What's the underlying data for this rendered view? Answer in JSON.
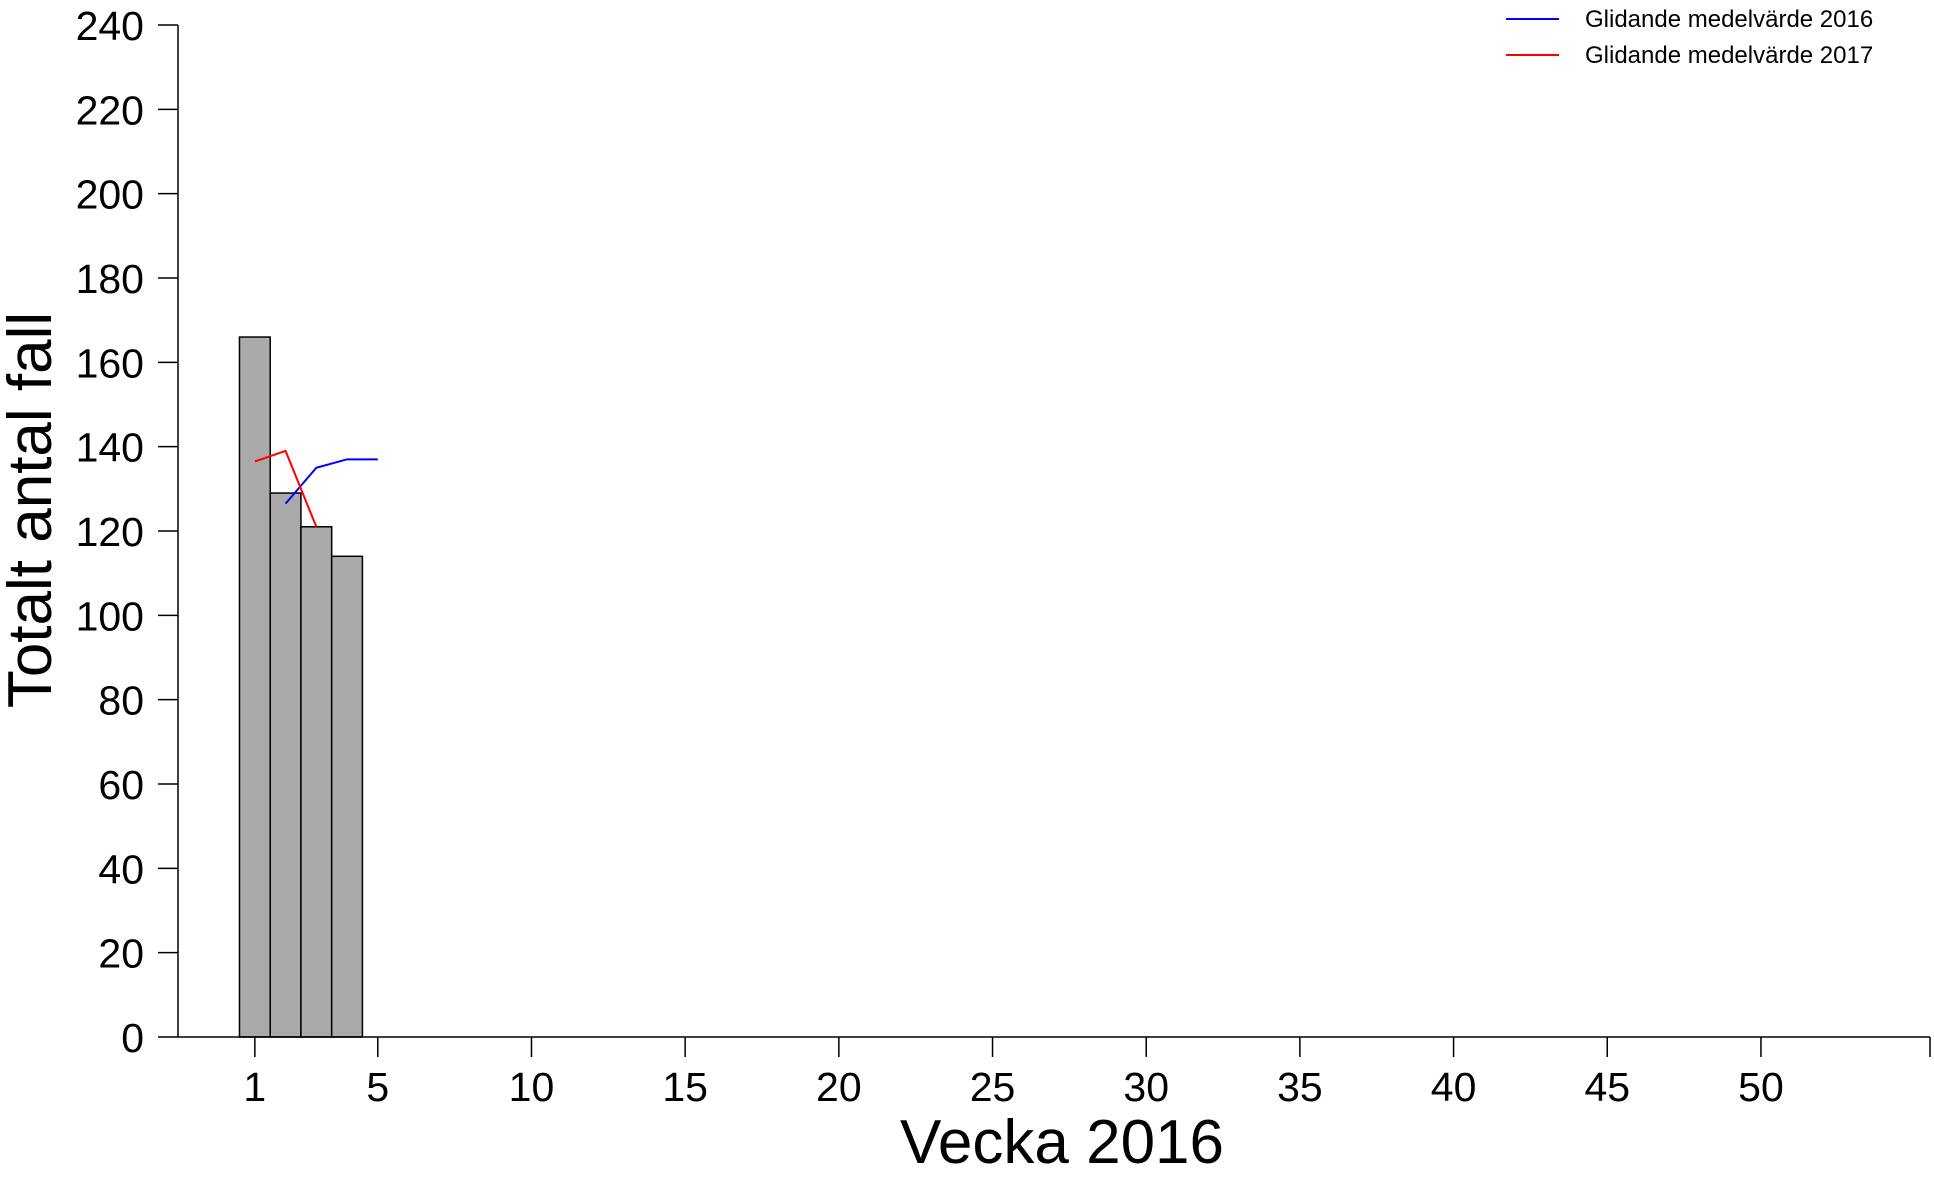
{
  "chart_data": {
    "type": "bar",
    "xlabel": "Vecka 2016",
    "ylabel": "Totalt antal fall",
    "xlim": [
      -1.5,
      55.5
    ],
    "ylim": [
      0,
      240
    ],
    "x_ticks": [
      1,
      5,
      10,
      15,
      20,
      25,
      30,
      35,
      40,
      45,
      50
    ],
    "y_ticks": [
      0,
      20,
      40,
      60,
      80,
      100,
      120,
      140,
      160,
      180,
      200,
      220,
      240
    ],
    "bars": {
      "weeks": [
        1,
        2,
        3,
        4
      ],
      "values": [
        166,
        129,
        121,
        114
      ],
      "fill": "#aaaaaa",
      "stroke": "#000000"
    },
    "series": [
      {
        "name": "Glidande medelvärde 2016",
        "color": "#0000ff",
        "x": [
          2,
          3,
          4,
          5
        ],
        "values": [
          126.5,
          135,
          137,
          137
        ]
      },
      {
        "name": "Glidande medelvärde 2017",
        "color": "#ff0000",
        "x": [
          1,
          2,
          3
        ],
        "values": [
          136.5,
          139,
          121
        ]
      }
    ],
    "legend_position": "top-right",
    "grid": false
  }
}
